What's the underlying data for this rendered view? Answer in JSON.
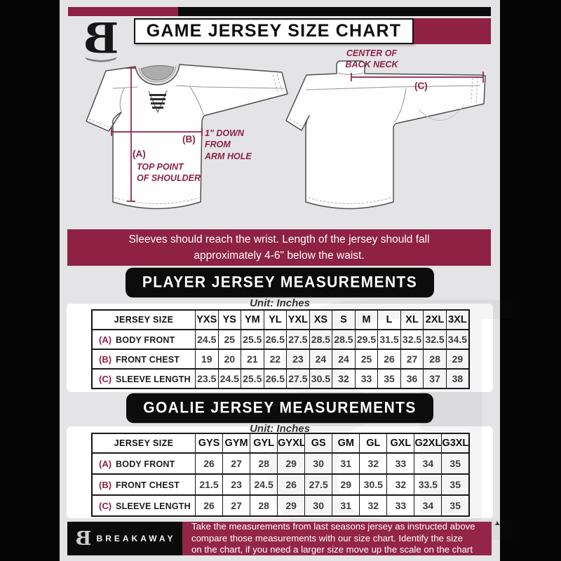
{
  "header": {
    "title": "GAME JERSEY SIZE CHART"
  },
  "brand": {
    "logo_letter": "B"
  },
  "diagram": {
    "note_back_neck": "CENTER OF\nBACK NECK",
    "label_a": "(A)",
    "label_b": "(B)",
    "label_c": "(C)",
    "note_a": "TOP POINT\nOF SHOULDER",
    "note_b": "1\" DOWN\nFROM\nARM HOLE"
  },
  "banner": "Sleeves should reach the wrist. Length of the jersey should fall\napproximately 4-6\" below the waist.",
  "player": {
    "heading": "PLAYER JERSEY MEASUREMENTS",
    "unit": "Unit: Inches",
    "table": {
      "corner": "JERSEY SIZE",
      "sizes": [
        "YXS",
        "YS",
        "YM",
        "YL",
        "YXL",
        "XS",
        "S",
        "M",
        "L",
        "XL",
        "2XL",
        "3XL"
      ],
      "rows": [
        {
          "key": "(A)",
          "label": "BODY FRONT",
          "values": [
            "24.5",
            "25",
            "25.5",
            "26.5",
            "27.5",
            "28.5",
            "28.5",
            "29.5",
            "31.5",
            "32.5",
            "32.5",
            "34.5"
          ]
        },
        {
          "key": "(B)",
          "label": "FRONT CHEST",
          "values": [
            "19",
            "20",
            "21",
            "22",
            "23",
            "24",
            "24",
            "25",
            "26",
            "27",
            "28",
            "29"
          ]
        },
        {
          "key": "(C)",
          "label": "SLEEVE LENGTH",
          "values": [
            "23.5",
            "24.5",
            "25.5",
            "26.5",
            "27.5",
            "30.5",
            "32",
            "33",
            "35",
            "36",
            "37",
            "38"
          ]
        }
      ]
    }
  },
  "goalie": {
    "heading": "GOALIE JERSEY MEASUREMENTS",
    "unit": "Unit: Inches",
    "table": {
      "corner": "JERSEY SIZE",
      "sizes": [
        "GYS",
        "GYM",
        "GYL",
        "GYXL",
        "GS",
        "GM",
        "GL",
        "GXL",
        "G2XL",
        "G3XL"
      ],
      "rows": [
        {
          "key": "(A)",
          "label": "BODY FRONT",
          "values": [
            "26",
            "27",
            "28",
            "29",
            "30",
            "31",
            "32",
            "33",
            "34",
            "35"
          ]
        },
        {
          "key": "(B)",
          "label": "FRONT CHEST",
          "values": [
            "21.5",
            "23",
            "24.5",
            "26",
            "27.5",
            "29",
            "30.5",
            "32",
            "33.5",
            "35"
          ]
        },
        {
          "key": "(C)",
          "label": "SLEEVE LENGTH",
          "values": [
            "26",
            "27",
            "28",
            "29",
            "30",
            "31",
            "32",
            "33",
            "34",
            "35"
          ]
        }
      ]
    }
  },
  "footer": {
    "brand": "BREAKAWAY",
    "text": "Take the measurements from last seasons jersey as instructed above\ncompare those measurements  with our size chart. Identify the size\non the chart, if you need a larger size move up the scale on the chart"
  },
  "colors": {
    "maroon": "#8e2144",
    "black": "#0a0a0a",
    "background": "#e4e4e6"
  }
}
